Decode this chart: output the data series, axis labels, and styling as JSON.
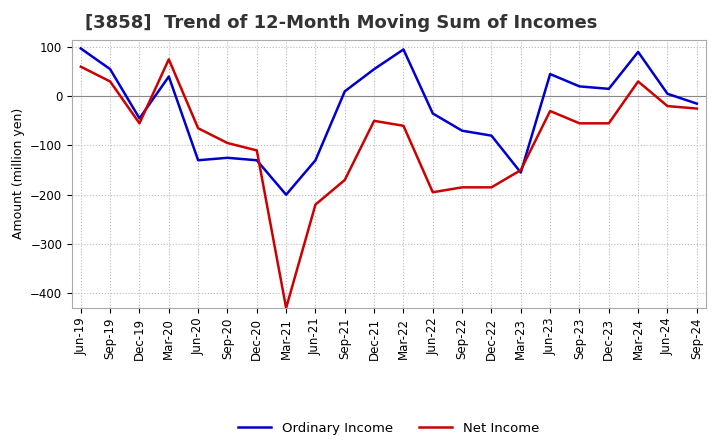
{
  "title": "[3858]  Trend of 12-Month Moving Sum of Incomes",
  "ylabel": "Amount (million yen)",
  "x_labels": [
    "Jun-19",
    "Sep-19",
    "Dec-19",
    "Mar-20",
    "Jun-20",
    "Sep-20",
    "Dec-20",
    "Mar-21",
    "Jun-21",
    "Sep-21",
    "Dec-21",
    "Mar-22",
    "Jun-22",
    "Sep-22",
    "Dec-22",
    "Mar-23",
    "Jun-23",
    "Sep-23",
    "Dec-23",
    "Mar-24",
    "Jun-24",
    "Sep-24"
  ],
  "ordinary_income": [
    97,
    55,
    -45,
    40,
    -130,
    -125,
    -130,
    -200,
    -130,
    10,
    55,
    95,
    -35,
    -70,
    -80,
    -155,
    45,
    20,
    15,
    90,
    5,
    -15
  ],
  "net_income": [
    60,
    30,
    -55,
    75,
    -65,
    -95,
    -110,
    -430,
    -220,
    -170,
    -50,
    -60,
    -195,
    -185,
    -185,
    -150,
    -30,
    -55,
    -55,
    30,
    -20,
    -25
  ],
  "ordinary_income_color": "#0000cc",
  "net_income_color": "#cc0000",
  "ylim_min": -430,
  "ylim_max": 115,
  "yticks": [
    100,
    0,
    -100,
    -200,
    -300,
    -400
  ],
  "background_color": "#ffffff",
  "plot_bg_color": "#ffffff",
  "grid_color": "#bbbbbb",
  "line_width": 1.8,
  "legend_ordinary": "Ordinary Income",
  "legend_net": "Net Income",
  "title_fontsize": 13,
  "axis_fontsize": 9,
  "tick_fontsize": 8.5
}
